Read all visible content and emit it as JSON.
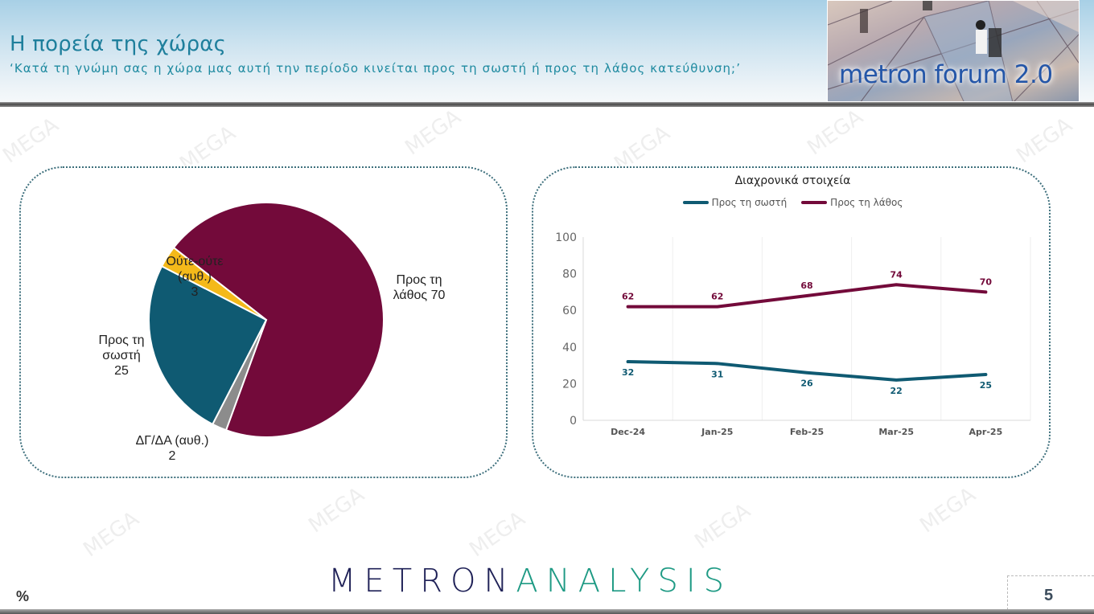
{
  "header": {
    "title": "Η πορεία της χώρας",
    "subtitle": "‘Κατά τη γνώμη σας η χώρα μας αυτή την περίοδο κινείται προς τη σωστή ή προς τη λάθος κατεύθυνση;’",
    "logo_text": "metron forum 2.0"
  },
  "colors": {
    "wrong": "#730a3a",
    "right": "#0f5a72",
    "neither": "#f4b91a",
    "dk": "#8c8c8c",
    "title": "#1e7f9c"
  },
  "pie_labels": {
    "wrong": [
      "Προς τη",
      "λάθος 70"
    ],
    "right": [
      "Προς τη",
      "σωστή",
      "25"
    ],
    "neither": [
      "Ούτε-ούτε",
      "(αυθ.)",
      "3"
    ],
    "dk": [
      "ΔΓ/ΔΑ (αυθ.)",
      "2"
    ]
  },
  "line_chart": {
    "title": "Διαχρονικά στοιχεία",
    "legend": [
      "Προς τη σωστή",
      "Προς τη λάθος"
    ],
    "y_ticks": [
      "0",
      "20",
      "40",
      "60",
      "80",
      "100"
    ],
    "x_ticks": [
      "Dec-24",
      "Jan-25",
      "Feb-25",
      "Mar-25",
      "Apr-25"
    ]
  },
  "footer": {
    "unit": "%",
    "brand_part1": "METRON",
    "brand_part2": "ANALYSIS",
    "page_number": "5"
  },
  "chart_data": [
    {
      "type": "pie",
      "title": "",
      "categories": [
        "Προς τη λάθος",
        "Προς τη σωστή",
        "Ούτε-ούτε (αυθ.)",
        "ΔΓ/ΔΑ (αυθ.)"
      ],
      "values": [
        70,
        25,
        3,
        2
      ],
      "colors": [
        "#730a3a",
        "#0f5a72",
        "#f4b91a",
        "#8c8c8c"
      ],
      "unit": "%"
    },
    {
      "type": "line",
      "title": "Διαχρονικά στοιχεία",
      "categories": [
        "Dec-24",
        "Jan-25",
        "Feb-25",
        "Mar-25",
        "Apr-25"
      ],
      "series": [
        {
          "name": "Προς τη σωστή",
          "values": [
            32,
            31,
            26,
            22,
            25
          ],
          "color": "#0f5a72"
        },
        {
          "name": "Προς τη λάθος",
          "values": [
            62,
            62,
            68,
            74,
            70
          ],
          "color": "#730a3a"
        }
      ],
      "xlabel": "",
      "ylabel": "",
      "ylim": [
        0,
        100
      ],
      "yticks": [
        0,
        20,
        40,
        60,
        80,
        100
      ],
      "grid": "vertical",
      "legend_position": "top"
    }
  ]
}
